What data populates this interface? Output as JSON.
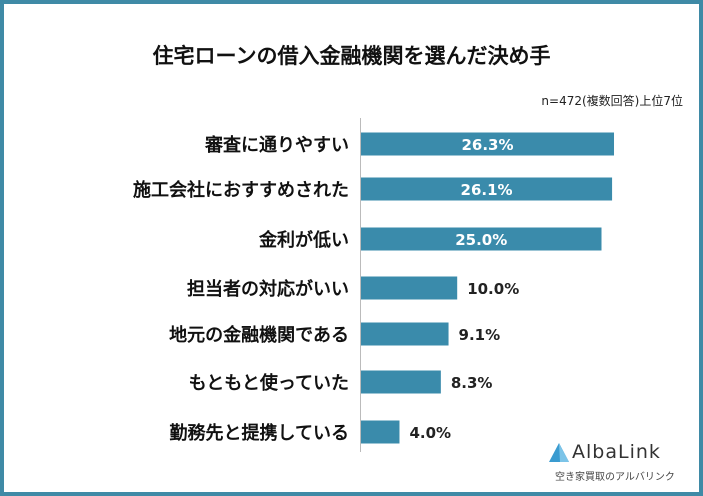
{
  "chart_data": {
    "type": "bar",
    "orientation": "horizontal",
    "title": "住宅ローンの借入金融機関を選んだ決め手",
    "subtitle": "n=472(複数回答)上位7位",
    "categories": [
      "審査に通りやすい",
      "施工会社におすすめされた",
      "金利が低い",
      "担当者の対応がいい",
      "地元の金融機関である",
      "もともと使っていた",
      "勤務先と提携している"
    ],
    "values": [
      26.3,
      26.1,
      25.0,
      10.0,
      9.1,
      8.3,
      4.0
    ],
    "data_labels": [
      "26.3%",
      "26.1%",
      "25.0%",
      "10.0%",
      "9.1%",
      "8.3%",
      "4.0%"
    ],
    "bar_color": "#3a8bab",
    "grid": false
  },
  "logo": {
    "name": "AlbaLink",
    "tagline": "空き家買取のアルバリンク"
  },
  "colors": {
    "frame": "#3f8aa6"
  }
}
